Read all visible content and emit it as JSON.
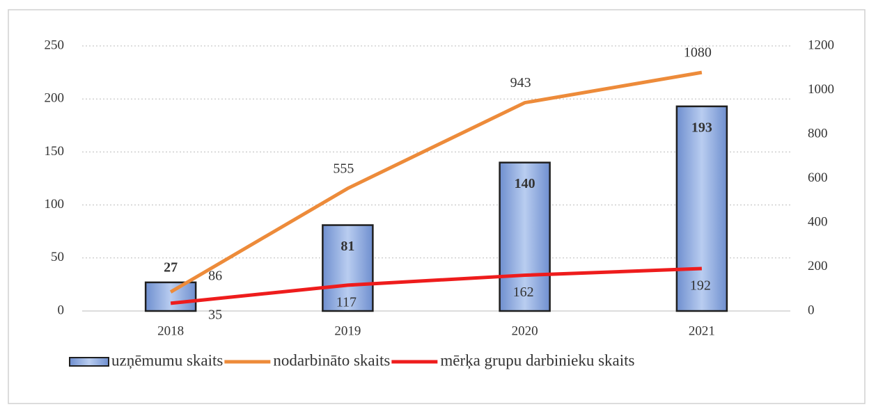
{
  "chart_data": {
    "type": "bar",
    "categories": [
      "2018",
      "2019",
      "2020",
      "2021"
    ],
    "series": [
      {
        "name": "uzņēmumu skaits",
        "type": "bar",
        "axis": "y",
        "color": "#8eaadb",
        "values": [
          27,
          81,
          140,
          193
        ]
      },
      {
        "name": "nodarbināto skaits",
        "type": "line",
        "axis": "y2",
        "color": "#ed8b3a",
        "values": [
          86,
          555,
          943,
          1080
        ]
      },
      {
        "name": "mērķa grupu darbinieku skaits",
        "type": "line",
        "axis": "y2",
        "color": "#ee1c1c",
        "values": [
          35,
          117,
          162,
          192
        ]
      }
    ],
    "ylim": [
      0,
      250
    ],
    "yticks": [
      0,
      50,
      100,
      150,
      200,
      250
    ],
    "y2lim": [
      0,
      1200
    ],
    "y2ticks": [
      0,
      200,
      400,
      600,
      800,
      1000,
      1200
    ],
    "grid": true,
    "legend": "bottom"
  }
}
